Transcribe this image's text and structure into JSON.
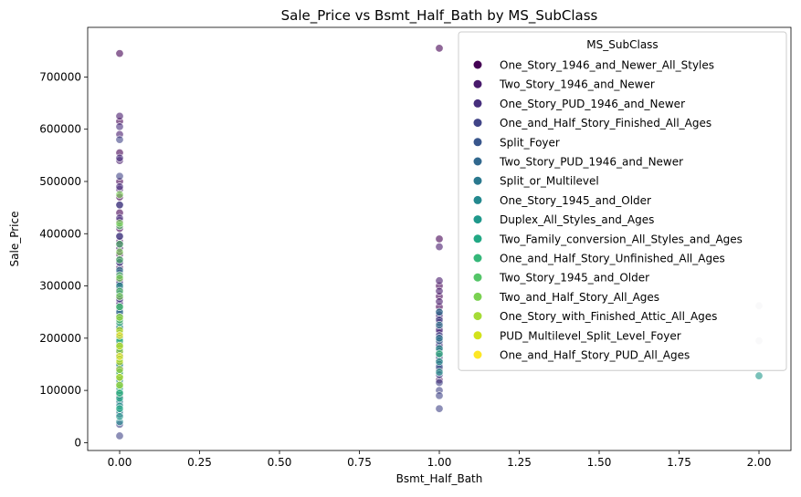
{
  "chart_data": {
    "type": "scatter",
    "title": "Sale_Price vs Bsmt_Half_Bath by MS_SubClass",
    "xlabel": "Bsmt_Half_Bath",
    "ylabel": "Sale_Price",
    "xlim": [
      -0.1,
      2.1
    ],
    "ylim": [
      -15000,
      795000
    ],
    "xticks": [
      0.0,
      0.25,
      0.5,
      0.75,
      1.0,
      1.25,
      1.5,
      1.75,
      2.0
    ],
    "xtick_labels": [
      "0.00",
      "0.25",
      "0.50",
      "0.75",
      "1.00",
      "1.25",
      "1.50",
      "1.75",
      "2.00"
    ],
    "yticks": [
      0,
      100000,
      200000,
      300000,
      400000,
      500000,
      600000,
      700000
    ],
    "ytick_labels": [
      "0",
      "100000",
      "200000",
      "300000",
      "400000",
      "500000",
      "600000",
      "700000"
    ],
    "grid": false,
    "legend": {
      "title": "MS_SubClass",
      "placement": "top-right",
      "entries": [
        {
          "label": "One_Story_1946_and_Newer_All_Styles",
          "color": "#440154"
        },
        {
          "label": "Two_Story_1946_and_Newer",
          "color": "#481a6c"
        },
        {
          "label": "One_Story_PUD_1946_and_Newer",
          "color": "#472f7d"
        },
        {
          "label": "One_and_Half_Story_Finished_All_Ages",
          "color": "#414487"
        },
        {
          "label": "Split_Foyer",
          "color": "#39568c"
        },
        {
          "label": "Two_Story_PUD_1946_and_Newer",
          "color": "#31688e"
        },
        {
          "label": "Split_or_Multilevel",
          "color": "#2a788e"
        },
        {
          "label": "One_Story_1945_and_Older",
          "color": "#23888e"
        },
        {
          "label": "Duplex_All_Styles_and_Ages",
          "color": "#1f988b"
        },
        {
          "label": "Two_Family_conversion_All_Styles_and_Ages",
          "color": "#22a884"
        },
        {
          "label": "One_and_Half_Story_Unfinished_All_Ages",
          "color": "#35b779"
        },
        {
          "label": "Two_Story_1945_and_Older",
          "color": "#54c568"
        },
        {
          "label": "Two_and_Half_Story_All_Ages",
          "color": "#7ad151"
        },
        {
          "label": "One_Story_with_Finished_Attic_All_Ages",
          "color": "#a5db36"
        },
        {
          "label": "PUD_Multilevel_Split_Level_Foyer",
          "color": "#d2e21b"
        },
        {
          "label": "One_and_Half_Story_PUD_All_Ages",
          "color": "#fde725"
        }
      ]
    },
    "series": [
      {
        "name": "One_Story_1946_and_Newer_All_Styles",
        "points": [
          [
            0,
            745000
          ],
          [
            0,
            615000
          ],
          [
            0,
            555000
          ],
          [
            0,
            500000
          ],
          [
            0,
            470000
          ],
          [
            0,
            440000
          ],
          [
            0,
            410000
          ],
          [
            0,
            385000
          ],
          [
            0,
            360000
          ],
          [
            0,
            335000
          ],
          [
            0,
            310000
          ],
          [
            0,
            290000
          ],
          [
            0,
            270000
          ],
          [
            0,
            250000
          ],
          [
            0,
            230000
          ],
          [
            0,
            210000
          ],
          [
            0,
            190000
          ],
          [
            0,
            170000
          ],
          [
            0,
            150000
          ],
          [
            0,
            130000
          ],
          [
            0,
            110000
          ],
          [
            0,
            90000
          ],
          [
            1,
            755000
          ],
          [
            1,
            390000
          ],
          [
            1,
            300000
          ],
          [
            1,
            280000
          ],
          [
            1,
            260000
          ],
          [
            1,
            240000
          ],
          [
            1,
            220000
          ],
          [
            1,
            200000
          ],
          [
            1,
            180000
          ],
          [
            1,
            160000
          ],
          [
            1,
            140000
          ],
          [
            1,
            120000
          ]
        ]
      },
      {
        "name": "Two_Story_1946_and_Newer",
        "points": [
          [
            0,
            625000
          ],
          [
            0,
            590000
          ],
          [
            0,
            540000
          ],
          [
            0,
            485000
          ],
          [
            0,
            455000
          ],
          [
            0,
            425000
          ],
          [
            0,
            395000
          ],
          [
            0,
            372000
          ],
          [
            0,
            345000
          ],
          [
            0,
            320000
          ],
          [
            0,
            300000
          ],
          [
            0,
            280000
          ],
          [
            0,
            260000
          ],
          [
            0,
            240000
          ],
          [
            0,
            220000
          ],
          [
            0,
            200000
          ],
          [
            0,
            180000
          ],
          [
            1,
            375000
          ],
          [
            1,
            310000
          ],
          [
            1,
            290000
          ],
          [
            1,
            270000
          ],
          [
            1,
            250000
          ],
          [
            1,
            230000
          ],
          [
            1,
            210000
          ],
          [
            1,
            190000
          ]
        ]
      },
      {
        "name": "One_Story_PUD_1946_and_Newer",
        "points": [
          [
            0,
            605000
          ],
          [
            0,
            545000
          ],
          [
            0,
            490000
          ],
          [
            0,
            430000
          ],
          [
            0,
            380000
          ],
          [
            0,
            350000
          ],
          [
            0,
            325000
          ],
          [
            0,
            295000
          ],
          [
            0,
            265000
          ],
          [
            0,
            235000
          ],
          [
            0,
            205000
          ],
          [
            0,
            175000
          ],
          [
            0,
            145000
          ],
          [
            1,
            245000
          ],
          [
            1,
            215000
          ],
          [
            1,
            185000
          ],
          [
            1,
            155000
          ]
        ]
      },
      {
        "name": "One_and_Half_Story_Finished_All_Ages",
        "points": [
          [
            0,
            580000
          ],
          [
            0,
            510000
          ],
          [
            0,
            455000
          ],
          [
            0,
            395000
          ],
          [
            0,
            345000
          ],
          [
            0,
            305000
          ],
          [
            0,
            275000
          ],
          [
            0,
            245000
          ],
          [
            0,
            215000
          ],
          [
            0,
            185000
          ],
          [
            0,
            160000
          ],
          [
            0,
            140000
          ],
          [
            0,
            120000
          ],
          [
            0,
            100000
          ],
          [
            0,
            75000
          ],
          [
            0,
            55000
          ],
          [
            0,
            35000
          ],
          [
            0,
            13000
          ],
          [
            1,
            235000
          ],
          [
            1,
            205000
          ],
          [
            1,
            175000
          ],
          [
            1,
            150000
          ],
          [
            1,
            130000
          ],
          [
            1,
            115000
          ],
          [
            1,
            100000
          ],
          [
            1,
            90000
          ],
          [
            1,
            65000
          ]
        ]
      },
      {
        "name": "Split_Foyer",
        "points": [
          [
            0,
            255000
          ],
          [
            0,
            225000
          ],
          [
            0,
            195000
          ],
          [
            0,
            165000
          ],
          [
            0,
            135000
          ],
          [
            1,
            165000
          ],
          [
            1,
            145000
          ]
        ]
      },
      {
        "name": "Two_Story_PUD_1946_and_Newer",
        "points": [
          [
            0,
            215000
          ],
          [
            0,
            185000
          ],
          [
            0,
            160000
          ],
          [
            0,
            135000
          ],
          [
            0,
            115000
          ],
          [
            0,
            95000
          ],
          [
            1,
            195000
          ],
          [
            1,
            170000
          ]
        ]
      },
      {
        "name": "Split_or_Multilevel",
        "points": [
          [
            0,
            330000
          ],
          [
            0,
            285000
          ],
          [
            0,
            250000
          ],
          [
            0,
            220000
          ],
          [
            0,
            190000
          ],
          [
            0,
            165000
          ],
          [
            1,
            250000
          ],
          [
            1,
            225000
          ],
          [
            1,
            200000
          ]
        ]
      },
      {
        "name": "One_Story_1945_and_Older",
        "points": [
          [
            0,
            200000
          ],
          [
            0,
            175000
          ],
          [
            0,
            150000
          ],
          [
            0,
            125000
          ],
          [
            0,
            100000
          ],
          [
            0,
            80000
          ],
          [
            0,
            60000
          ],
          [
            0,
            40000
          ]
        ]
      },
      {
        "name": "Duplex_All_Styles_and_Ages",
        "points": [
          [
            0,
            300000
          ],
          [
            0,
            260000
          ],
          [
            0,
            220000
          ],
          [
            0,
            180000
          ],
          [
            0,
            150000
          ],
          [
            0,
            120000
          ],
          [
            0,
            95000
          ],
          [
            0,
            70000
          ],
          [
            0,
            50000
          ],
          [
            1,
            180000
          ],
          [
            1,
            155000
          ],
          [
            1,
            135000
          ],
          [
            2,
            128000
          ]
        ]
      },
      {
        "name": "Two_Family_conversion_All_Styles_and_Ages",
        "points": [
          [
            0,
            240000
          ],
          [
            0,
            200000
          ],
          [
            0,
            165000
          ],
          [
            0,
            130000
          ],
          [
            0,
            105000
          ],
          [
            0,
            85000
          ],
          [
            0,
            65000
          ]
        ]
      },
      {
        "name": "One_and_Half_Story_Unfinished_All_Ages",
        "points": [
          [
            0,
            230000
          ],
          [
            0,
            195000
          ],
          [
            0,
            160000
          ],
          [
            0,
            125000
          ],
          [
            0,
            95000
          ],
          [
            1,
            170000
          ]
        ]
      },
      {
        "name": "Two_Story_1945_and_Older",
        "points": [
          [
            0,
            415000
          ],
          [
            0,
            380000
          ],
          [
            0,
            350000
          ],
          [
            0,
            320000
          ],
          [
            0,
            290000
          ],
          [
            0,
            260000
          ],
          [
            0,
            235000
          ],
          [
            0,
            210000
          ],
          [
            0,
            185000
          ],
          [
            0,
            160000
          ],
          [
            0,
            135000
          ],
          [
            0,
            110000
          ]
        ]
      },
      {
        "name": "Two_and_Half_Story_All_Ages",
        "points": [
          [
            0,
            475000
          ],
          [
            0,
            420000
          ],
          [
            0,
            365000
          ],
          [
            0,
            315000
          ],
          [
            0,
            280000
          ]
        ]
      },
      {
        "name": "One_Story_with_Finished_Attic_All_Ages",
        "points": [
          [
            0,
            240000
          ],
          [
            0,
            175000
          ],
          [
            0,
            140000
          ],
          [
            0,
            110000
          ]
        ]
      },
      {
        "name": "PUD_Multilevel_Split_Level_Foyer",
        "points": [
          [
            0,
            215000
          ],
          [
            0,
            185000
          ],
          [
            0,
            155000
          ],
          [
            0,
            125000
          ]
        ]
      },
      {
        "name": "One_and_Half_Story_PUD_All_Ages",
        "points": [
          [
            0,
            205000
          ],
          [
            0,
            165000
          ]
        ]
      },
      {
        "name": "",
        "color": "#b9b9c9",
        "points": [
          [
            2,
            262000
          ],
          [
            2,
            195000
          ]
        ]
      }
    ]
  }
}
